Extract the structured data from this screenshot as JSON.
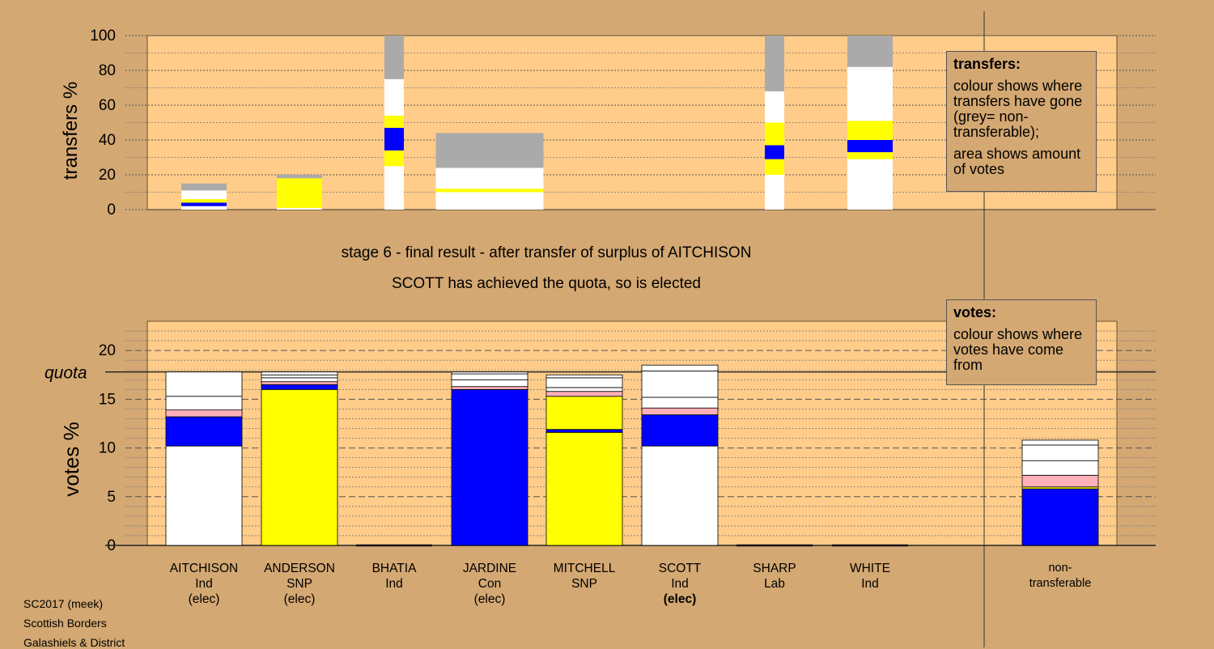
{
  "header": {
    "stage": "stage 6 - final result - after transfer of surplus of AITCHISON",
    "result": "SCOTT has achieved the quota, so is elected"
  },
  "legend": {
    "transfers": {
      "title": "transfers:",
      "line1": "colour shows where transfers have gone (grey= non-transferable);",
      "line2": "area shows amount of votes"
    },
    "votes": {
      "title": "votes:",
      "line1": "colour shows where votes have come from"
    }
  },
  "footer": {
    "line1": "SC2017 (meek)",
    "line2": "Scottish Borders",
    "line3": "Galashiels & District"
  },
  "colors": {
    "background": "#d4a872",
    "plot": "#ffcc8a",
    "white": "#ffffff",
    "blue": "#0000ff",
    "yellow": "#ffff00",
    "pink": "#ffb0b8",
    "grey": "#aaaaaa"
  },
  "chart_data": [
    {
      "type": "bar",
      "name": "transfers",
      "ylabel": "transfers %",
      "ylim": [
        0,
        100
      ],
      "yticks": [
        0,
        20,
        40,
        60,
        80,
        100
      ],
      "bars": [
        {
          "candidate": "AITCHISON",
          "width": "narrow",
          "segments": [
            {
              "color": "white",
              "value": 2
            },
            {
              "color": "blue",
              "value": 2
            },
            {
              "color": "yellow",
              "value": 2
            },
            {
              "color": "white",
              "value": 5
            },
            {
              "color": "grey",
              "value": 4
            }
          ]
        },
        {
          "candidate": "ANDERSON",
          "width": "narrow",
          "segments": [
            {
              "color": "white",
              "value": 1
            },
            {
              "color": "yellow",
              "value": 17
            },
            {
              "color": "grey",
              "value": 2
            }
          ]
        },
        {
          "candidate": "BHATIA",
          "width": "thin",
          "segments": [
            {
              "color": "white",
              "value": 25
            },
            {
              "color": "yellow",
              "value": 9
            },
            {
              "color": "blue",
              "value": 13
            },
            {
              "color": "yellow",
              "value": 7
            },
            {
              "color": "white",
              "value": 21
            },
            {
              "color": "grey",
              "value": 25
            }
          ]
        },
        {
          "candidate": "JARDINE",
          "width": "wide",
          "segments": [
            {
              "color": "white",
              "value": 10
            },
            {
              "color": "yellow",
              "value": 2
            },
            {
              "color": "white",
              "value": 12
            },
            {
              "color": "grey",
              "value": 20
            }
          ]
        },
        {
          "candidate": "SHARP",
          "width": "thin",
          "segments": [
            {
              "color": "white",
              "value": 20
            },
            {
              "color": "yellow",
              "value": 9
            },
            {
              "color": "blue",
              "value": 8
            },
            {
              "color": "yellow",
              "value": 13
            },
            {
              "color": "white",
              "value": 18
            },
            {
              "color": "grey",
              "value": 32
            }
          ]
        },
        {
          "candidate": "WHITE",
          "width": "narrow",
          "segments": [
            {
              "color": "white",
              "value": 29
            },
            {
              "color": "yellow",
              "value": 4
            },
            {
              "color": "blue",
              "value": 7
            },
            {
              "color": "yellow",
              "value": 11
            },
            {
              "color": "white",
              "value": 31
            },
            {
              "color": "grey",
              "value": 18
            }
          ]
        }
      ]
    },
    {
      "type": "bar",
      "name": "votes",
      "ylabel": "votes %",
      "ylim": [
        0,
        23
      ],
      "yticks": [
        0,
        5,
        10,
        15,
        20
      ],
      "quota": 17.8,
      "quota_label": "quota",
      "categories": [
        {
          "name": "AITCHISON",
          "party": "Ind",
          "status": "(elec)",
          "status_bold": false
        },
        {
          "name": "ANDERSON",
          "party": "SNP",
          "status": "(elec)",
          "status_bold": false
        },
        {
          "name": "BHATIA",
          "party": "Ind",
          "status": "",
          "status_bold": false
        },
        {
          "name": "JARDINE",
          "party": "Con",
          "status": "(elec)",
          "status_bold": false
        },
        {
          "name": "MITCHELL",
          "party": "SNP",
          "status": "",
          "status_bold": false
        },
        {
          "name": "SCOTT",
          "party": "Ind",
          "status": "(elec)",
          "status_bold": true
        },
        {
          "name": "SHARP",
          "party": "Lab",
          "status": "",
          "status_bold": false
        },
        {
          "name": "WHITE",
          "party": "Ind",
          "status": "",
          "status_bold": false
        },
        {
          "name": "non-",
          "party": "transferable",
          "status": "",
          "status_bold": false
        }
      ],
      "stacks": [
        [
          {
            "color": "white",
            "value": 10.2
          },
          {
            "color": "blue",
            "value": 3.0
          },
          {
            "color": "pink",
            "value": 0.7
          },
          {
            "color": "white",
            "value": 1.4
          },
          {
            "color": "white",
            "value": 2.5
          }
        ],
        [
          {
            "color": "yellow",
            "value": 16.0
          },
          {
            "color": "blue",
            "value": 0.5
          },
          {
            "color": "pink",
            "value": 0.3
          },
          {
            "color": "white",
            "value": 0.4
          },
          {
            "color": "white",
            "value": 0.3
          },
          {
            "color": "white",
            "value": 0.3
          }
        ],
        [],
        [
          {
            "color": "blue",
            "value": 16.0
          },
          {
            "color": "pink",
            "value": 0.3
          },
          {
            "color": "white",
            "value": 0.7
          },
          {
            "color": "white",
            "value": 0.6
          },
          {
            "color": "white",
            "value": 0.2
          }
        ],
        [
          {
            "color": "yellow",
            "value": 11.6
          },
          {
            "color": "blue",
            "value": 0.3
          },
          {
            "color": "yellow",
            "value": 3.4
          },
          {
            "color": "pink",
            "value": 0.5
          },
          {
            "color": "white",
            "value": 0.4
          },
          {
            "color": "white",
            "value": 1.0
          },
          {
            "color": "white",
            "value": 0.3
          }
        ],
        [
          {
            "color": "white",
            "value": 10.2
          },
          {
            "color": "blue",
            "value": 3.2
          },
          {
            "color": "pink",
            "value": 0.7
          },
          {
            "color": "white",
            "value": 1.1
          },
          {
            "color": "white",
            "value": 2.7
          },
          {
            "color": "white",
            "value": 0.6
          }
        ],
        [],
        [],
        [
          {
            "color": "blue",
            "value": 5.8
          },
          {
            "color": "yellow",
            "value": 0.2
          },
          {
            "color": "pink",
            "value": 1.2
          },
          {
            "color": "white",
            "value": 1.5
          },
          {
            "color": "white",
            "value": 1.6
          },
          {
            "color": "white",
            "value": 0.5
          }
        ]
      ]
    }
  ]
}
